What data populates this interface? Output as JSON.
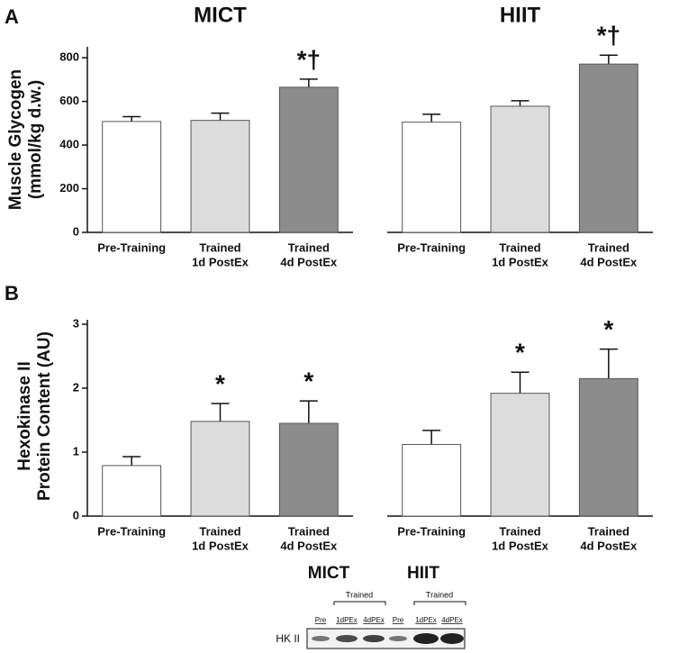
{
  "panel_labels": [
    "A",
    "B"
  ],
  "chart_data": [
    {
      "type": "bar",
      "title": "MICT",
      "ylabel": [
        "Muscle Glycogen",
        "(mmol/kg d.w.)"
      ],
      "categories": [
        [
          "Pre-Training"
        ],
        [
          "Trained",
          "1d PostEx"
        ],
        [
          "Trained",
          "4d PostEx"
        ]
      ],
      "values": [
        508,
        513,
        665
      ],
      "errors": [
        22,
        33,
        37
      ],
      "annotations": [
        null,
        null,
        "*†"
      ],
      "colors": [
        "#ffffff",
        "#dcdcdc",
        "#8c8c8c"
      ],
      "ylim": [
        0,
        850
      ],
      "yticks": [
        0,
        200,
        400,
        600,
        800
      ]
    },
    {
      "type": "bar",
      "title": "HIIT",
      "categories": [
        [
          "Pre-Training"
        ],
        [
          "Trained",
          "1d PostEx"
        ],
        [
          "Trained",
          "4d PostEx"
        ]
      ],
      "values": [
        505,
        578,
        771
      ],
      "errors": [
        36,
        25,
        41
      ],
      "annotations": [
        null,
        null,
        "*†"
      ],
      "colors": [
        "#ffffff",
        "#dcdcdc",
        "#8c8c8c"
      ],
      "ylim": [
        0,
        850
      ]
    },
    {
      "type": "bar",
      "ylabel": [
        "Hexokinase II",
        "Protein Content (AU)"
      ],
      "categories": [
        [
          "Pre-Training"
        ],
        [
          "Trained",
          "1d PostEx"
        ],
        [
          "Trained",
          "4d PostEx"
        ]
      ],
      "values": [
        0.79,
        1.48,
        1.45
      ],
      "errors": [
        0.14,
        0.28,
        0.35
      ],
      "annotations": [
        null,
        "*",
        "*"
      ],
      "colors": [
        "#ffffff",
        "#dcdcdc",
        "#8c8c8c"
      ],
      "ylim": [
        0,
        3.07
      ],
      "yticks": [
        0,
        1,
        2,
        3
      ]
    },
    {
      "type": "bar",
      "categories": [
        [
          "Pre-Training"
        ],
        [
          "Trained",
          "1d PostEx"
        ],
        [
          "Trained",
          "4d PostEx"
        ]
      ],
      "values": [
        1.12,
        1.92,
        2.15
      ],
      "errors": [
        0.22,
        0.33,
        0.46
      ],
      "annotations": [
        null,
        "*",
        "*"
      ],
      "colors": [
        "#ffffff",
        "#dcdcdc",
        "#8c8c8c"
      ],
      "ylim": [
        0,
        3.07
      ]
    }
  ],
  "blot": {
    "groups": [
      "MICT",
      "HIIT"
    ],
    "trained": [
      "Trained",
      "Trained"
    ],
    "lanes": [
      "Pre",
      "1dPEx",
      "4dPEx",
      "Pre",
      "1dPEx",
      "4dPEx"
    ],
    "protein": "HK II"
  }
}
